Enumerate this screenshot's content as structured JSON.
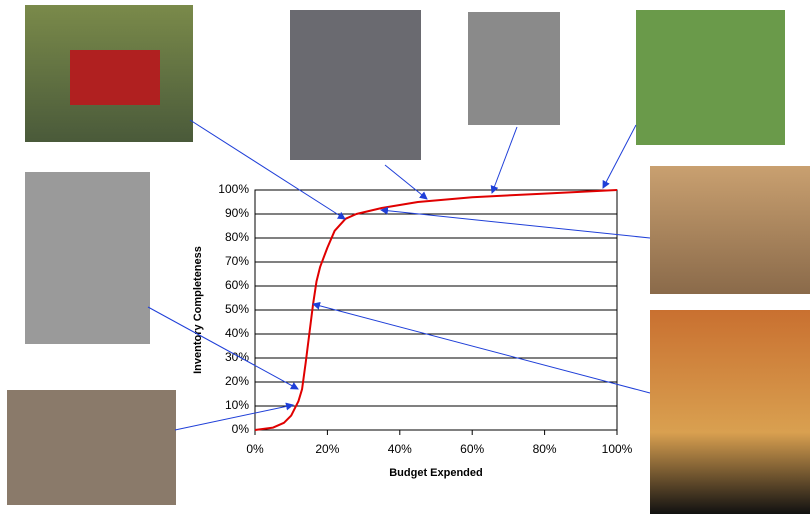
{
  "chart_data": {
    "type": "line",
    "x_label": "Budget Expended",
    "y_label": "Inventory Completeness",
    "x": [
      0,
      5,
      8,
      10,
      12,
      13,
      14,
      15,
      16,
      17,
      18,
      20,
      22,
      25,
      28,
      35,
      45,
      60,
      80,
      100
    ],
    "series": [
      {
        "color": "#e00000",
        "values": [
          0,
          1,
          3,
          6,
          12,
          17,
          28,
          40,
          52,
          62,
          68,
          76,
          83,
          88,
          90,
          92.5,
          95,
          97,
          98.5,
          100
        ]
      }
    ],
    "xlim": [
      0,
      100
    ],
    "xticks": [
      {
        "value": 0,
        "label": "0%"
      },
      {
        "value": 20,
        "label": "20%"
      },
      {
        "value": 40,
        "label": "40%"
      },
      {
        "value": 60,
        "label": "60%"
      },
      {
        "value": 80,
        "label": "80%"
      },
      {
        "value": 100,
        "label": "100%"
      }
    ],
    "ylim": [
      0,
      100
    ],
    "yticks": [
      {
        "value": 0,
        "label": "0%"
      },
      {
        "value": 10,
        "label": "10%"
      },
      {
        "value": 20,
        "label": "20%"
      },
      {
        "value": 30,
        "label": "30%"
      },
      {
        "value": 40,
        "label": "40%"
      },
      {
        "value": 50,
        "label": "50%"
      },
      {
        "value": 60,
        "label": "60%"
      },
      {
        "value": 70,
        "label": "70%"
      },
      {
        "value": 80,
        "label": "80%"
      },
      {
        "value": 90,
        "label": "90%"
      },
      {
        "value": 100,
        "label": "100%"
      }
    ],
    "grid": true
  }
}
